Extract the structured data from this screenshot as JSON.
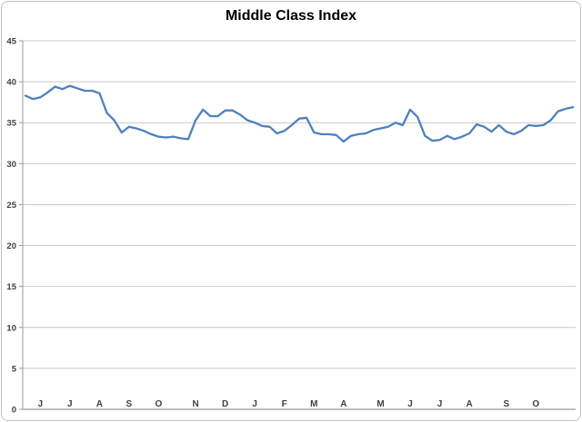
{
  "chart_data": {
    "type": "line",
    "title": "Middle Class Index",
    "xlabel": "",
    "ylabel": "",
    "ylim": [
      0,
      45
    ],
    "y_ticks": [
      0,
      5,
      10,
      15,
      20,
      25,
      30,
      35,
      40,
      45
    ],
    "grid": "horizontal",
    "legend": "none",
    "x_unit": "weeks",
    "n_points": 75,
    "categories": [
      "J",
      "J",
      "A",
      "S",
      "O",
      "N",
      "D",
      "J",
      "F",
      "M",
      "A",
      "M",
      "J",
      "J",
      "A",
      "S",
      "O"
    ],
    "category_week_positions": [
      2,
      6,
      10,
      14,
      18,
      23,
      27,
      31,
      35,
      39,
      43,
      48,
      52,
      56,
      60,
      65,
      69
    ],
    "series": [
      {
        "name": "Middle Class Index",
        "values": [
          38.3,
          37.9,
          38.1,
          38.7,
          39.4,
          39.1,
          39.5,
          39.2,
          38.9,
          38.9,
          38.6,
          36.2,
          35.3,
          33.8,
          34.5,
          34.3,
          34.0,
          33.6,
          33.3,
          33.2,
          33.3,
          33.1,
          33.0,
          35.3,
          36.6,
          35.8,
          35.8,
          36.5,
          36.5,
          36.0,
          35.3,
          35.0,
          34.6,
          34.5,
          33.7,
          34.0,
          34.7,
          35.5,
          35.6,
          33.8,
          33.6,
          33.6,
          33.5,
          32.7,
          33.4,
          33.6,
          33.7,
          34.1,
          34.3,
          34.5,
          35.0,
          34.7,
          36.6,
          35.7,
          33.4,
          32.8,
          32.9,
          33.4,
          33.0,
          33.3,
          33.7,
          34.8,
          34.5,
          33.9,
          34.7,
          33.9,
          33.6,
          34.0,
          34.7,
          34.6,
          34.7,
          35.3,
          36.4,
          36.7,
          36.9
        ]
      }
    ],
    "colors": {
      "line": "#4F81BD",
      "gridline": "#c9c9c9",
      "axis": "#9a9a9a",
      "tick_label": "#3f3f3f",
      "title": "#000000",
      "frame_border": "#c3c3c3",
      "background": "#ffffff"
    }
  }
}
